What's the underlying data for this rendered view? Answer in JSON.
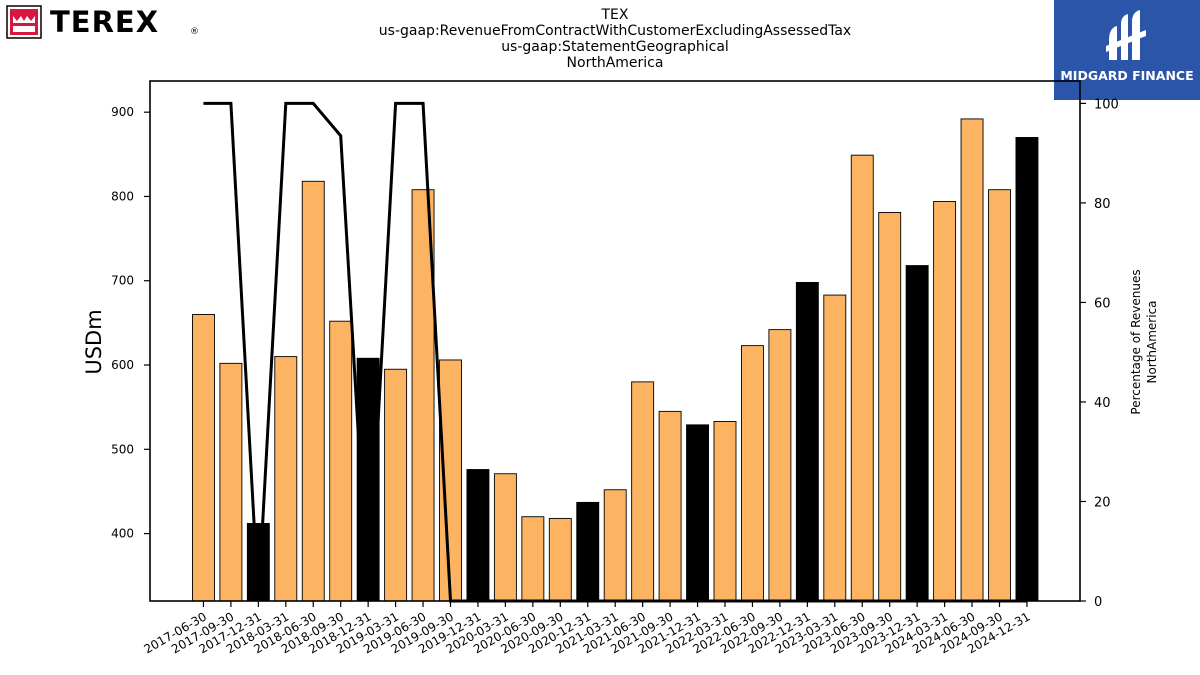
{
  "header": {
    "brand_logo_text": "TEREX",
    "registered_mark": "®",
    "title_lines": [
      "TEX",
      "us-gaap:RevenueFromContractWithCustomerExcludingAssessedTax",
      "us-gaap:StatementGeographical",
      "NorthAmerica"
    ],
    "badge_text": "MIDGARD FINANCE"
  },
  "colors": {
    "bar_default": "#fdb462",
    "bar_highlight": "#000000",
    "line": "#000000",
    "logo_red": "#d7173f",
    "badge_blue": "#2b55a8"
  },
  "chart_data": {
    "type": "bar",
    "categories": [
      "2017-06-30",
      "2017-09-30",
      "2017-12-31",
      "2018-03-31",
      "2018-06-30",
      "2018-09-30",
      "2018-12-31",
      "2019-03-31",
      "2019-06-30",
      "2019-09-30",
      "2019-12-31",
      "2020-03-31",
      "2020-06-30",
      "2020-09-30",
      "2020-12-31",
      "2021-03-31",
      "2021-06-30",
      "2021-09-30",
      "2021-12-31",
      "2022-03-31",
      "2022-06-30",
      "2022-09-30",
      "2022-12-31",
      "2023-03-31",
      "2023-06-30",
      "2023-09-30",
      "2023-12-31",
      "2024-03-31",
      "2024-06-30",
      "2024-09-30",
      "2024-12-31"
    ],
    "values": [
      660,
      602,
      412,
      610,
      818,
      652,
      608,
      595,
      808,
      606,
      476,
      471,
      420,
      418,
      437,
      452,
      580,
      545,
      529,
      533,
      623,
      642,
      698,
      683,
      849,
      781,
      718,
      794,
      892,
      808,
      870
    ],
    "highlighted": [
      false,
      false,
      true,
      false,
      false,
      false,
      true,
      false,
      false,
      false,
      true,
      false,
      false,
      false,
      true,
      false,
      false,
      false,
      true,
      false,
      false,
      false,
      true,
      false,
      false,
      false,
      true,
      false,
      false,
      false,
      true
    ],
    "ylabel": "USDm",
    "ylim": [
      320,
      937
    ],
    "yticks": [
      400,
      500,
      600,
      700,
      800,
      900
    ],
    "secondary": {
      "type": "line",
      "ylabel_lines": [
        "Percentage of Revenues",
        "NorthAmerica"
      ],
      "ylim": [
        0,
        104.5
      ],
      "yticks": [
        0,
        20,
        40,
        60,
        80,
        100
      ],
      "values": [
        100,
        100,
        0,
        100,
        100,
        93.5,
        0,
        100,
        100,
        0,
        0,
        0,
        0,
        0,
        0,
        0,
        0,
        0,
        0,
        0,
        0,
        0,
        0,
        0,
        0,
        0,
        0,
        0,
        0,
        0,
        0
      ]
    }
  }
}
